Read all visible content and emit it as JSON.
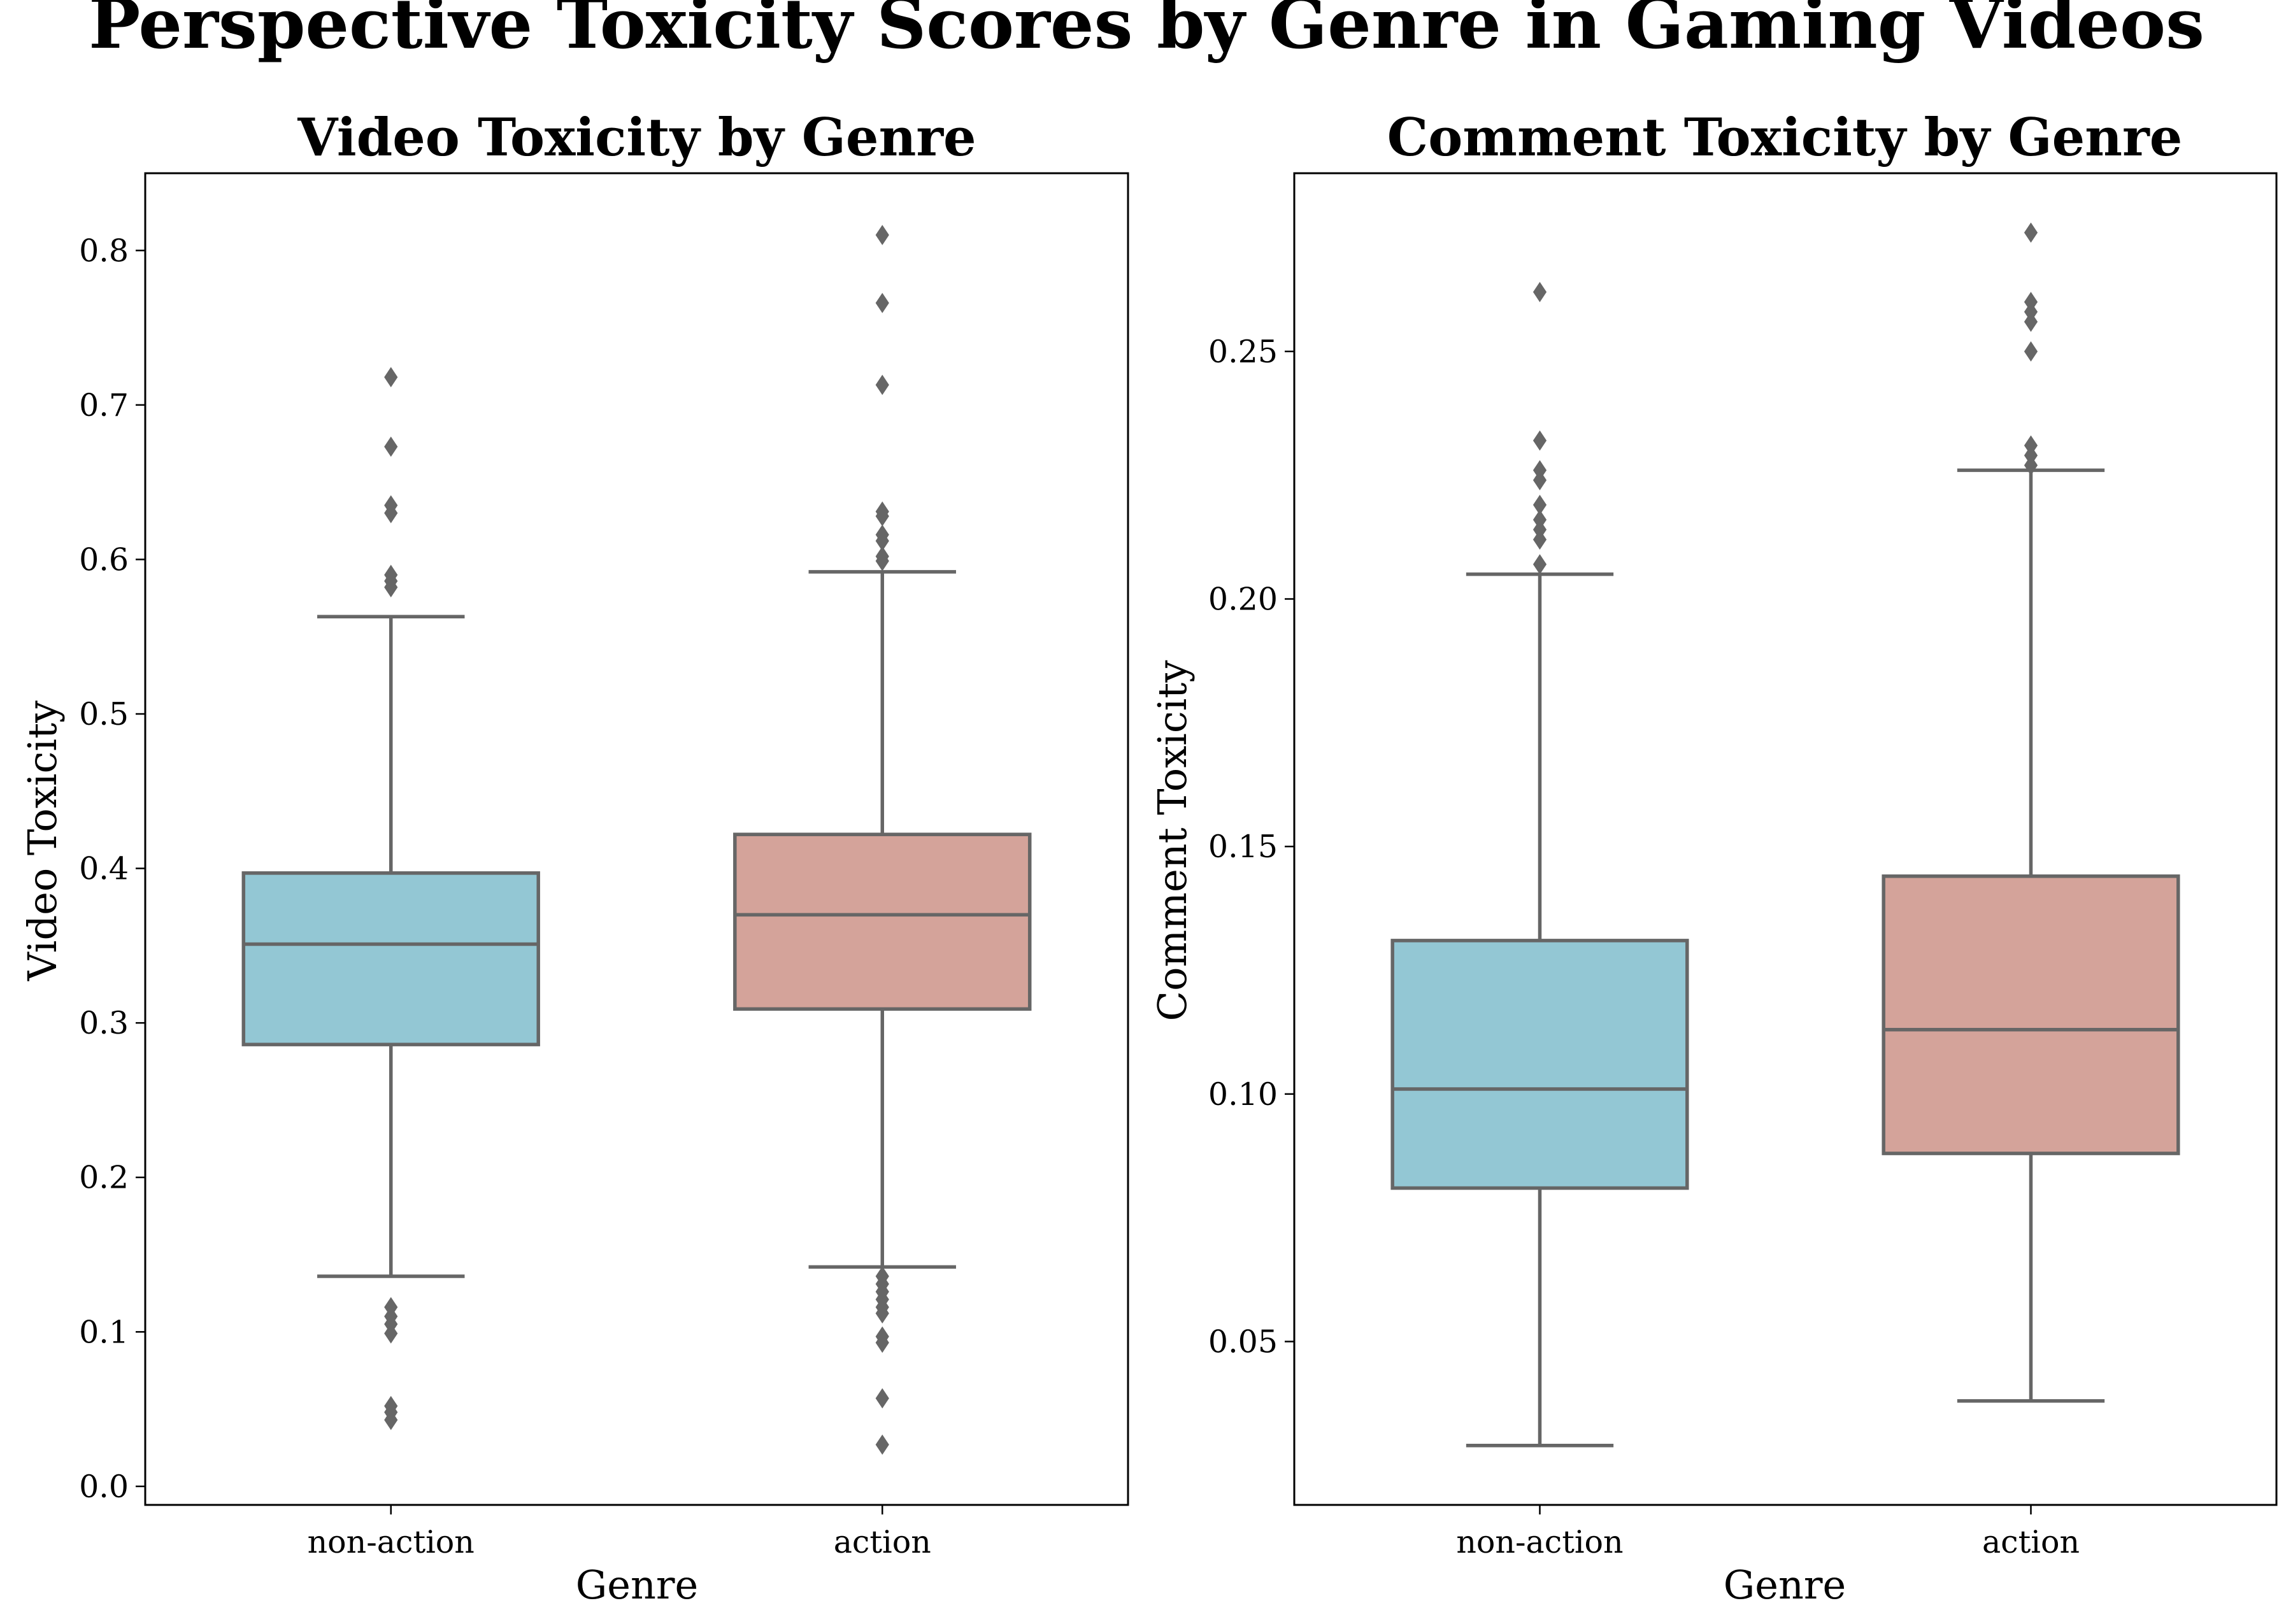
{
  "title": "Perspective Toxicity Scores by Genre in Gaming Videos",
  "colors": {
    "non-action": "#93c7d4",
    "action": "#d4a39a",
    "edge": "#666666",
    "axes": "#000000"
  },
  "chart_data": [
    {
      "type": "box",
      "title": "Video Toxicity by Genre",
      "xlabel": "Genre",
      "ylabel": "Video Toxicity",
      "categories": [
        "non-action",
        "action"
      ],
      "ylim": [
        -0.012,
        0.85
      ],
      "yticks": [
        0.0,
        0.1,
        0.2,
        0.3,
        0.4,
        0.5,
        0.6,
        0.7,
        0.8
      ],
      "ytick_labels": [
        "0.0",
        "0.1",
        "0.2",
        "0.3",
        "0.4",
        "0.5",
        "0.6",
        "0.7",
        "0.8"
      ],
      "boxes": [
        {
          "category": "non-action",
          "whisker_low": 0.136,
          "q1": 0.286,
          "median": 0.351,
          "q3": 0.397,
          "whisker_high": 0.563,
          "outliers": [
            0.718,
            0.673,
            0.635,
            0.63,
            0.59,
            0.586,
            0.582,
            0.116,
            0.11,
            0.105,
            0.099,
            0.052,
            0.048,
            0.043
          ]
        },
        {
          "category": "action",
          "whisker_low": 0.142,
          "q1": 0.309,
          "median": 0.37,
          "q3": 0.422,
          "whisker_high": 0.592,
          "outliers": [
            0.81,
            0.766,
            0.713,
            0.631,
            0.628,
            0.616,
            0.612,
            0.602,
            0.599,
            0.136,
            0.131,
            0.126,
            0.121,
            0.116,
            0.112,
            0.097,
            0.093,
            0.057,
            0.027
          ]
        }
      ]
    },
    {
      "type": "box",
      "title": "Comment Toxicity by Genre",
      "xlabel": "Genre",
      "ylabel": "Comment Toxicity",
      "categories": [
        "non-action",
        "action"
      ],
      "ylim": [
        0.017,
        0.286
      ],
      "yticks": [
        0.05,
        0.1,
        0.15,
        0.2,
        0.25
      ],
      "ytick_labels": [
        "0.05",
        "0.10",
        "0.15",
        "0.20",
        "0.25"
      ],
      "boxes": [
        {
          "category": "non-action",
          "whisker_low": 0.029,
          "q1": 0.081,
          "median": 0.101,
          "q3": 0.131,
          "whisker_high": 0.205,
          "outliers": [
            0.262,
            0.232,
            0.226,
            0.224,
            0.219,
            0.216,
            0.214,
            0.212,
            0.207
          ]
        },
        {
          "category": "action",
          "whisker_low": 0.038,
          "q1": 0.088,
          "median": 0.113,
          "q3": 0.144,
          "whisker_high": 0.226,
          "outliers": [
            0.274,
            0.26,
            0.258,
            0.256,
            0.25,
            0.231,
            0.229,
            0.227
          ]
        }
      ]
    }
  ]
}
